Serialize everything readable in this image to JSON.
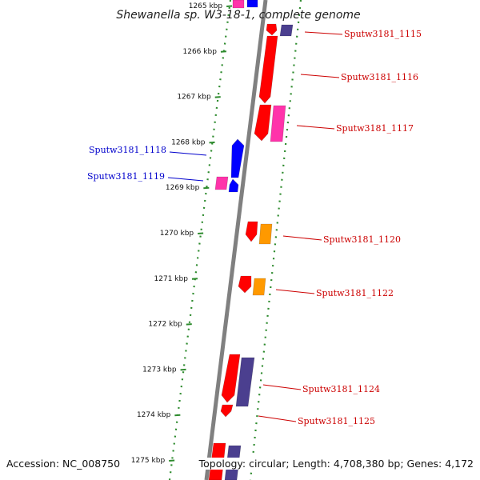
{
  "title": "Shewanella sp. W3-18-1, complete genome",
  "accession": "Accession: NC_008750",
  "topology": "Topology: circular; Length: 4,708,380 bp; Genes: 4,172",
  "colors": {
    "backbone": "#808080",
    "tick_dots": "#2e8b2e",
    "forward_gene": "#ff0000",
    "reverse_gene": "#0000ff",
    "magenta_gene": "#ff33aa",
    "orange_gene": "#ff9900",
    "purple_gene": "#4b3f8f"
  },
  "kbp_ticks": [
    {
      "kbp": 1265,
      "label": "1265 kbp"
    },
    {
      "kbp": 1266,
      "label": "1266 kbp"
    },
    {
      "kbp": 1267,
      "label": "1267 kbp"
    },
    {
      "kbp": 1268,
      "label": "1268 kbp"
    },
    {
      "kbp": 1269,
      "label": "1269 kbp"
    },
    {
      "kbp": 1270,
      "label": "1270 kbp"
    },
    {
      "kbp": 1271,
      "label": "1271 kbp"
    },
    {
      "kbp": 1272,
      "label": "1272 kbp"
    },
    {
      "kbp": 1273,
      "label": "1273 kbp"
    },
    {
      "kbp": 1274,
      "label": "1274 kbp"
    },
    {
      "kbp": 1275,
      "label": "1275 kbp"
    }
  ],
  "gene_labels": [
    {
      "name": "Sputw3181_1115",
      "strand": "forward",
      "color": "#cc0000"
    },
    {
      "name": "Sputw3181_1116",
      "strand": "forward",
      "color": "#cc0000"
    },
    {
      "name": "Sputw3181_1117",
      "strand": "forward",
      "color": "#cc0000"
    },
    {
      "name": "Sputw3181_1118",
      "strand": "reverse",
      "color": "#0000cc"
    },
    {
      "name": "Sputw3181_1119",
      "strand": "reverse",
      "color": "#0000cc"
    },
    {
      "name": "Sputw3181_1120",
      "strand": "forward",
      "color": "#cc0000"
    },
    {
      "name": "Sputw3181_1122",
      "strand": "forward",
      "color": "#cc0000"
    },
    {
      "name": "Sputw3181_1124",
      "strand": "forward",
      "color": "#cc0000"
    },
    {
      "name": "Sputw3181_1125",
      "strand": "forward",
      "color": "#cc0000"
    }
  ]
}
